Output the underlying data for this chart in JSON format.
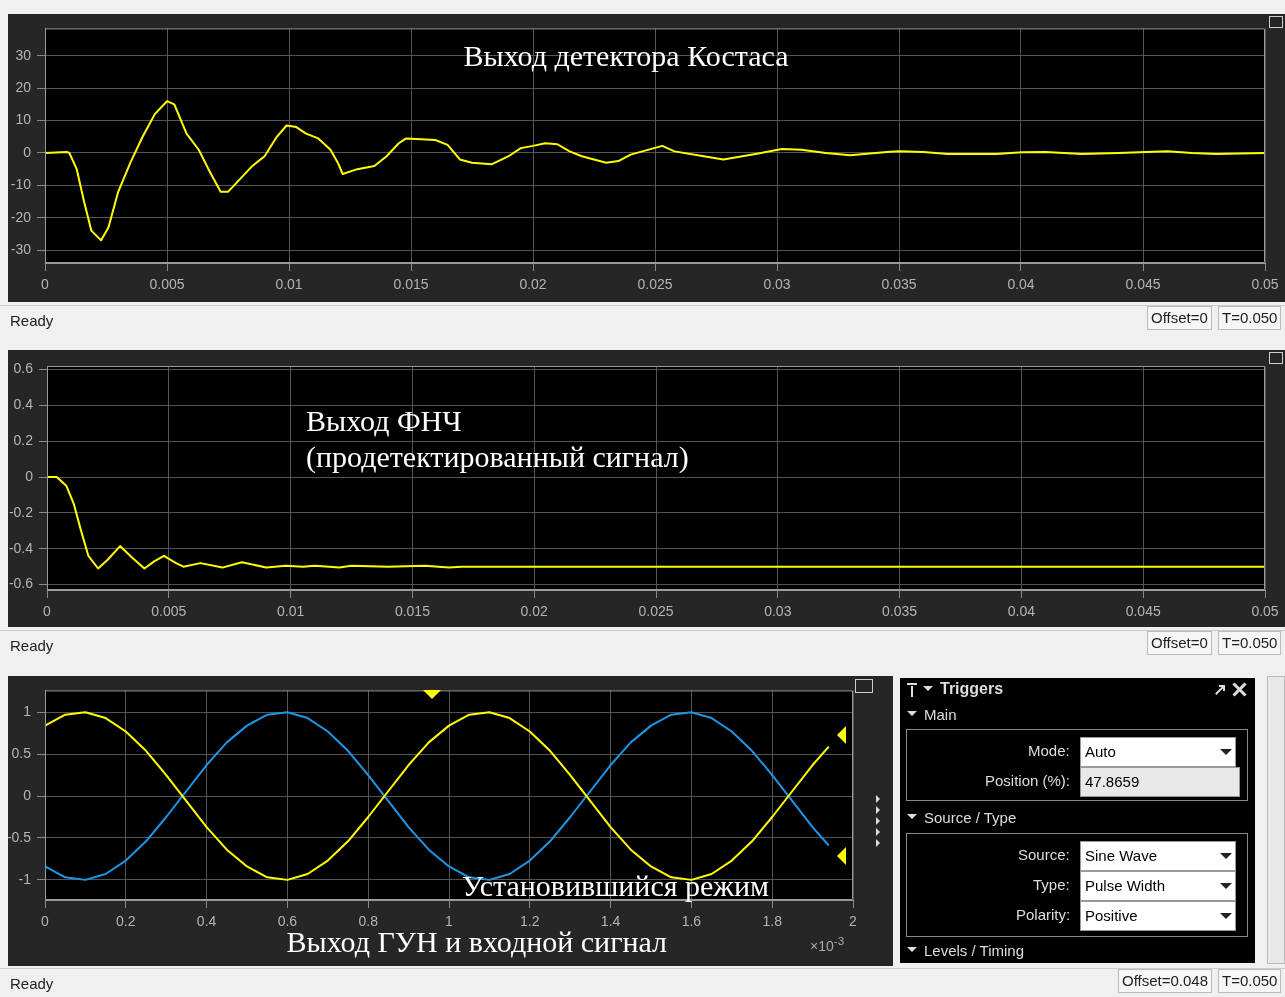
{
  "chart_data": [
    {
      "type": "line",
      "title": "Выход детектора Костаса",
      "xlim": [
        0,
        0.05
      ],
      "ylim": [
        -34,
        38.5
      ],
      "xticks": [
        0,
        0.005,
        0.01,
        0.015,
        0.02,
        0.025,
        0.03,
        0.035,
        0.04,
        0.045,
        0.05
      ],
      "yticks": [
        -30,
        -20,
        -10,
        0,
        10,
        20,
        30
      ],
      "grid": true,
      "x": [
        0,
        0.0009,
        0.001,
        0.0013,
        0.0016,
        0.0019,
        0.0023,
        0.0026,
        0.003,
        0.0035,
        0.004,
        0.0045,
        0.005,
        0.0053,
        0.0058,
        0.0063,
        0.0067,
        0.0072,
        0.0075,
        0.008,
        0.0085,
        0.009,
        0.0095,
        0.0099,
        0.0103,
        0.0107,
        0.0112,
        0.0117,
        0.012,
        0.0122,
        0.0128,
        0.0135,
        0.014,
        0.0145,
        0.0148,
        0.016,
        0.0165,
        0.017,
        0.0175,
        0.0183,
        0.019,
        0.0195,
        0.02,
        0.0205,
        0.021,
        0.0215,
        0.022,
        0.023,
        0.0235,
        0.024,
        0.0253,
        0.0258,
        0.027,
        0.0278,
        0.029,
        0.0302,
        0.031,
        0.032,
        0.033,
        0.0345,
        0.035,
        0.036,
        0.037,
        0.039,
        0.04,
        0.041,
        0.0425,
        0.044,
        0.046,
        0.047,
        0.048,
        0.05
      ],
      "series": [
        {
          "color": "#ffff00",
          "values": [
            0,
            0.3,
            0,
            -5,
            -15,
            -24,
            -27,
            -23,
            -12,
            -3,
            5,
            12,
            16,
            15,
            6,
            1,
            -5,
            -12,
            -12,
            -8,
            -4,
            -1,
            5,
            8.5,
            8,
            6,
            4.5,
            1,
            -3,
            -6.5,
            -5,
            -4,
            -1,
            3,
            4.5,
            4,
            2.5,
            -2,
            -3,
            -3.5,
            -1,
            1.5,
            2.2,
            3,
            2.7,
            0.5,
            -1,
            -3,
            -2.5,
            -0.5,
            2.2,
            0.5,
            -1,
            -2,
            -0.5,
            1.2,
            1,
            0,
            -0.7,
            0.3,
            0.5,
            0.3,
            -0.3,
            -0.3,
            0.2,
            0.3,
            -0.3,
            0,
            0.5,
            0,
            -0.3,
            0
          ]
        }
      ],
      "annotations": [
        "Ready",
        "Offset=0",
        "T=0.050"
      ]
    },
    {
      "type": "line",
      "title": "Выход ФНЧ",
      "subtitle": "(продетектированный сигнал)",
      "xlim": [
        0,
        0.05
      ],
      "ylim": [
        -0.63,
        0.62
      ],
      "xticks": [
        0,
        0.005,
        0.01,
        0.015,
        0.02,
        0.025,
        0.03,
        0.035,
        0.04,
        0.045,
        0.05
      ],
      "yticks": [
        -0.6,
        -0.4,
        -0.2,
        0,
        0.2,
        0.4,
        0.6
      ],
      "grid": true,
      "x": [
        0,
        0.0004,
        0.0008,
        0.0011,
        0.0014,
        0.0017,
        0.0021,
        0.0025,
        0.003,
        0.0035,
        0.004,
        0.0044,
        0.0048,
        0.0053,
        0.0056,
        0.0063,
        0.0072,
        0.008,
        0.009,
        0.0098,
        0.0105,
        0.011,
        0.012,
        0.0125,
        0.014,
        0.0155,
        0.0165,
        0.017,
        0.05
      ],
      "series": [
        {
          "color": "#ffff00",
          "values": [
            0,
            0,
            -0.05,
            -0.15,
            -0.3,
            -0.44,
            -0.51,
            -0.46,
            -0.385,
            -0.45,
            -0.51,
            -0.47,
            -0.44,
            -0.48,
            -0.5,
            -0.48,
            -0.505,
            -0.475,
            -0.505,
            -0.495,
            -0.5,
            -0.495,
            -0.505,
            -0.495,
            -0.5,
            -0.495,
            -0.505,
            -0.5,
            -0.5
          ]
        }
      ],
      "annotations": [
        "Ready",
        "Offset=0",
        "T=0.050"
      ]
    },
    {
      "type": "line",
      "title": "Выход ГУН и входной сигнал",
      "xlim": [
        0,
        2
      ],
      "ylim": [
        -1.24,
        1.26
      ],
      "xticks": [
        0,
        0.2,
        0.4,
        0.6,
        0.8,
        1,
        1.2,
        1.4,
        1.6,
        1.8,
        2
      ],
      "yticks": [
        -1,
        -0.5,
        0,
        0.5,
        1
      ],
      "grid": true,
      "x": [
        0,
        0.05,
        0.1,
        0.15,
        0.2,
        0.25,
        0.3,
        0.35,
        0.4,
        0.45,
        0.5,
        0.55,
        0.6,
        0.65,
        0.7,
        0.75,
        0.8,
        0.85,
        0.9,
        0.95,
        1,
        1.05,
        1.1,
        1.15,
        1.2,
        1.25,
        1.3,
        1.35,
        1.4,
        1.45,
        1.5,
        1.55,
        1.6,
        1.65,
        1.7,
        1.75,
        1.8,
        1.85,
        1.9,
        1.94
      ],
      "series": [
        {
          "color": "#ffff00",
          "values": [
            0.84,
            0.97,
            1,
            0.93,
            0.77,
            0.54,
            0.25,
            -0.06,
            -0.37,
            -0.64,
            -0.84,
            -0.97,
            -1,
            -0.93,
            -0.77,
            -0.54,
            -0.25,
            0.06,
            0.37,
            0.64,
            0.84,
            0.97,
            1,
            0.93,
            0.77,
            0.54,
            0.25,
            -0.06,
            -0.37,
            -0.64,
            -0.84,
            -0.97,
            -1,
            -0.93,
            -0.77,
            -0.54,
            -0.25,
            0.06,
            0.37,
            0.59
          ]
        },
        {
          "color": "#1e96e6",
          "values": [
            -0.84,
            -0.97,
            -1,
            -0.93,
            -0.77,
            -0.54,
            -0.25,
            0.06,
            0.37,
            0.64,
            0.84,
            0.97,
            1,
            0.93,
            0.77,
            0.54,
            0.25,
            -0.06,
            -0.37,
            -0.64,
            -0.84,
            -0.97,
            -1,
            -0.93,
            -0.77,
            -0.54,
            -0.25,
            0.06,
            0.37,
            0.64,
            0.84,
            0.97,
            1,
            0.93,
            0.77,
            0.54,
            0.25,
            -0.06,
            -0.37,
            -0.59
          ]
        }
      ],
      "annotations": [
        "Установившийся режим",
        "×10$^{-3}$",
        "Ready",
        "Offset=0.048",
        "T=0.050"
      ]
    },
    {
      "type": "other",
      "title": "Triggers",
      "annotations": [
        "Main",
        "Mode:",
        "Auto",
        "Position (%):",
        "47.8659",
        "Source / Type",
        "Source:",
        "Sine Wave",
        "Type:",
        "Pulse Width",
        "Polarity:",
        "Positive",
        "Levels / Timing"
      ]
    }
  ]
}
